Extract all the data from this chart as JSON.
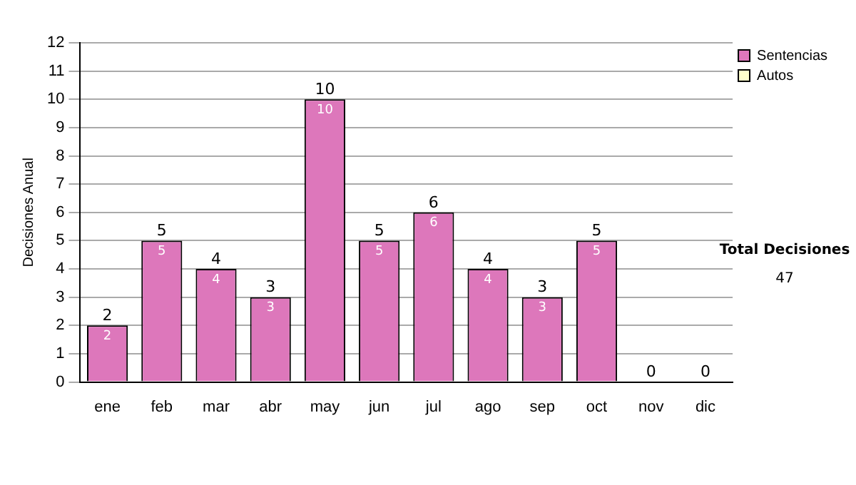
{
  "chart_data": {
    "type": "bar",
    "stacked": true,
    "ylabel": "Decisiones Anual",
    "categories": [
      "ene",
      "feb",
      "mar",
      "abr",
      "may",
      "jun",
      "jul",
      "ago",
      "sep",
      "oct",
      "nov",
      "dic"
    ],
    "series": [
      {
        "name": "Sentencias",
        "color": "#dd77bb",
        "values": [
          2,
          5,
          4,
          3,
          10,
          5,
          6,
          4,
          3,
          5,
          0,
          0
        ],
        "value_labels": [
          "2",
          "5",
          "4",
          "3",
          "10",
          "5",
          "6",
          "4",
          "3",
          "5",
          null,
          null
        ]
      },
      {
        "name": "Autos",
        "color": "#ffffcc",
        "values": [
          0,
          0,
          0,
          0,
          0,
          0,
          0,
          0,
          0,
          0,
          0,
          0
        ]
      }
    ],
    "totals": [
      "2",
      "5",
      "4",
      "3",
      "10",
      "5",
      "6",
      "4",
      "3",
      "5",
      "0",
      "0"
    ],
    "ylim": [
      0,
      12
    ],
    "yticks": [
      0,
      1,
      2,
      3,
      4,
      5,
      6,
      7,
      8,
      9,
      10,
      11,
      12
    ],
    "grid": "y",
    "legend": "right",
    "annotations": [
      "Total Decisiones",
      "47"
    ]
  }
}
